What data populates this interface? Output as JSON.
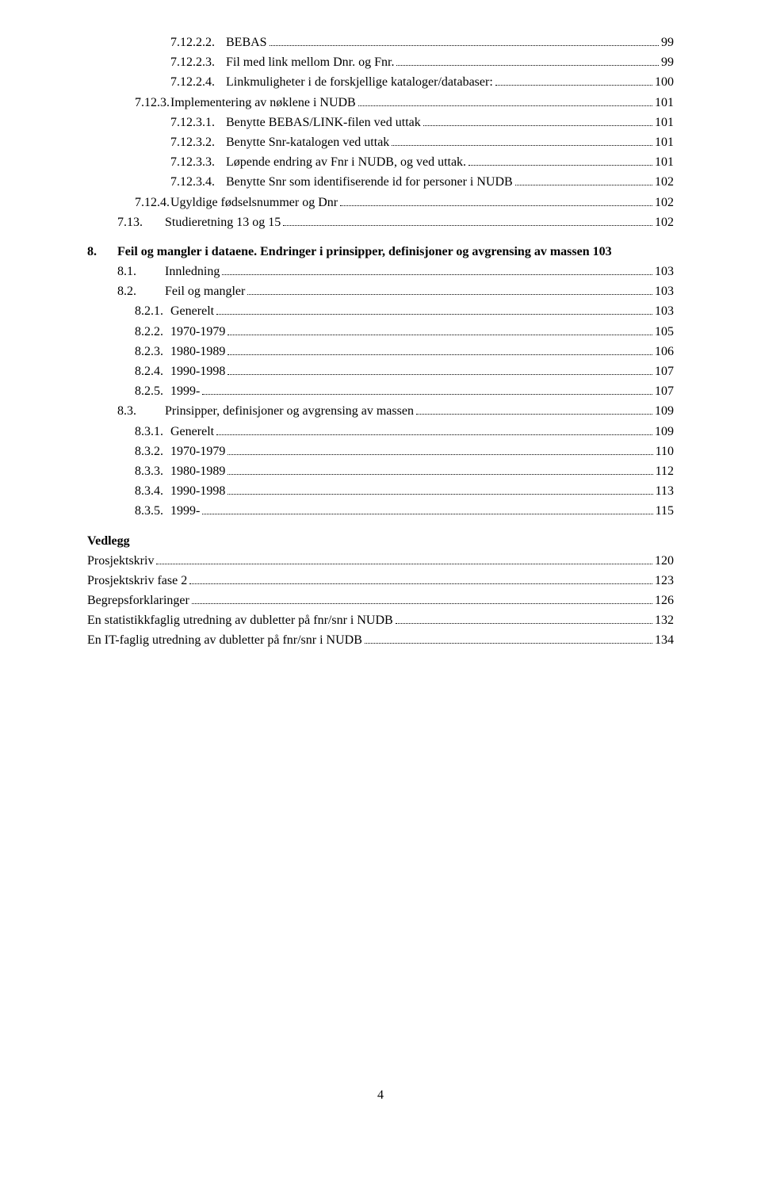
{
  "toc": [
    {
      "level": 3,
      "num": "7.12.2.2.",
      "text": "BEBAS",
      "page": "99"
    },
    {
      "level": 3,
      "num": "7.12.2.3.",
      "text": "Fil med link mellom Dnr. og Fnr.",
      "page": "99"
    },
    {
      "level": 3,
      "num": "7.12.2.4.",
      "text": "Linkmuligheter i de forskjellige kataloger/databaser:",
      "page": "100"
    },
    {
      "level": 2,
      "num": "7.12.3.",
      "text": "Implementering av nøklene i NUDB",
      "page": "101"
    },
    {
      "level": 3,
      "num": "7.12.3.1.",
      "text": "Benytte BEBAS/LINK-filen ved uttak",
      "page": "101"
    },
    {
      "level": 3,
      "num": "7.12.3.2.",
      "text": "Benytte Snr-katalogen ved uttak",
      "page": "101"
    },
    {
      "level": 3,
      "num": "7.12.3.3.",
      "text": "Løpende endring av Fnr i NUDB, og ved uttak.",
      "page": "101"
    },
    {
      "level": 3,
      "num": "7.12.3.4.",
      "text": "Benytte Snr som identifiserende id for personer i NUDB",
      "page": "102"
    },
    {
      "level": 2,
      "num": "7.12.4.",
      "text": "Ugyldige fødselsnummer og Dnr",
      "page": "102"
    },
    {
      "level": 0,
      "num": "7.13.",
      "text": "Studieretning 13 og 15",
      "page": "102"
    },
    {
      "level": 1,
      "num": "8.",
      "text": "Feil og mangler i dataene. Endringer i prinsipper, definisjoner og avgrensing av massen",
      "page": "103",
      "bold": true
    },
    {
      "level": 0,
      "num": "8.1.",
      "text": "Innledning",
      "page": "103"
    },
    {
      "level": 0,
      "num": "8.2.",
      "text": "Feil og mangler",
      "page": "103"
    },
    {
      "level": 2,
      "num": "8.2.1.",
      "text": "Generelt",
      "page": "103"
    },
    {
      "level": 2,
      "num": "8.2.2.",
      "text": "1970-1979",
      "page": "105"
    },
    {
      "level": 2,
      "num": "8.2.3.",
      "text": "1980-1989",
      "page": "106"
    },
    {
      "level": 2,
      "num": "8.2.4.",
      "text": "1990-1998",
      "page": "107"
    },
    {
      "level": 2,
      "num": "8.2.5.",
      "text": "1999-",
      "page": "107"
    },
    {
      "level": 0,
      "num": "8.3.",
      "text": "Prinsipper, definisjoner og avgrensing av massen",
      "page": "109"
    },
    {
      "level": 2,
      "num": "8.3.1.",
      "text": "Generelt",
      "page": "109"
    },
    {
      "level": 2,
      "num": "8.3.2.",
      "text": "1970-1979",
      "page": "110"
    },
    {
      "level": 2,
      "num": "8.3.3.",
      "text": "1980-1989",
      "page": "112"
    },
    {
      "level": 2,
      "num": "8.3.4.",
      "text": "1990-1998",
      "page": "113"
    },
    {
      "level": 2,
      "num": "8.3.5.",
      "text": "1999-",
      "page": "115"
    }
  ],
  "vedlegg_heading": "Vedlegg",
  "vedlegg": [
    {
      "text": "Prosjektskriv ",
      "page": "120"
    },
    {
      "text": "Prosjektskriv fase 2",
      "page": "123"
    },
    {
      "text": "Begrepsforklaringer",
      "page": "126"
    },
    {
      "text": "En statistikkfaglig utredning av dubletter på fnr/snr i NUDB",
      "page": "132"
    },
    {
      "text": "En IT-faglig utredning av dubletter på fnr/snr i NUDB",
      "page": "134"
    }
  ],
  "page_number": "4"
}
